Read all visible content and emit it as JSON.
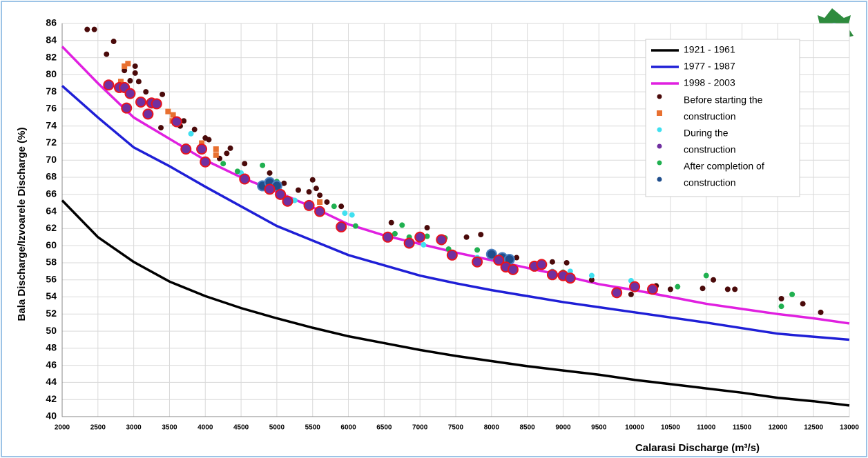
{
  "chart_data": {
    "type": "scatter",
    "x_label": "Calarasi Discharge (m³/s)",
    "y_label": "Bala Discharge/Izvoarele Discharge (%)",
    "xlim": [
      2000,
      13000
    ],
    "xticks": [
      2000,
      2500,
      3000,
      3500,
      4000,
      4500,
      5000,
      5500,
      6000,
      6500,
      7000,
      7500,
      8000,
      8500,
      9000,
      9500,
      10000,
      10500,
      11000,
      11500,
      12000,
      12500,
      13000
    ],
    "ylim": [
      40,
      86
    ],
    "yticks": [
      40,
      42,
      44,
      46,
      48,
      50,
      52,
      54,
      56,
      58,
      60,
      62,
      64,
      66,
      68,
      70,
      72,
      74,
      76,
      78,
      80,
      82,
      84,
      86
    ],
    "grid": true,
    "legend": "upper right",
    "series": [
      {
        "name": "1921 - 1961",
        "kind": "line",
        "color": "#000000",
        "x": [
          2000,
          2500,
          3000,
          3500,
          4000,
          4500,
          5000,
          5500,
          6000,
          6500,
          7000,
          7500,
          8000,
          8500,
          9000,
          9500,
          10000,
          10500,
          11000,
          11500,
          12000,
          12500,
          13000
        ],
        "values": [
          65.3,
          61,
          58.1,
          55.8,
          54.1,
          52.7,
          51.5,
          50.4,
          49.4,
          48.6,
          47.8,
          47.1,
          46.5,
          45.9,
          45.4,
          44.9,
          44.3,
          43.8,
          43.3,
          42.8,
          42.2,
          41.8,
          41.3
        ]
      },
      {
        "name": "1977 - 1987",
        "kind": "line",
        "color": "#1f1fd6",
        "x": [
          2000,
          2500,
          3000,
          3500,
          4000,
          4500,
          5000,
          5500,
          6000,
          6500,
          7000,
          7500,
          8000,
          8500,
          9000,
          9500,
          10000,
          11000,
          12000,
          13000
        ],
        "values": [
          78.7,
          75,
          71.5,
          69.3,
          66.9,
          64.6,
          62.3,
          60.6,
          58.9,
          57.7,
          56.5,
          55.6,
          54.8,
          54.1,
          53.4,
          52.8,
          52.2,
          51,
          49.7,
          49
        ]
      },
      {
        "name": "1998 - 2003",
        "kind": "line",
        "color": "#e020e0",
        "x": [
          2000,
          2500,
          3000,
          3500,
          4000,
          4500,
          5000,
          5500,
          6000,
          6500,
          7000,
          7500,
          8000,
          8500,
          9000,
          9500,
          10000,
          10500,
          11000,
          11500,
          12000,
          12500,
          13000
        ],
        "values": [
          83.3,
          79,
          75,
          72.5,
          70,
          68,
          66.3,
          64.5,
          62.5,
          61.2,
          60.2,
          59.2,
          58.3,
          57.4,
          56.5,
          55.5,
          54.8,
          54,
          53.2,
          52.6,
          52,
          51.5,
          50.9
        ]
      },
      {
        "name": "Before starting the",
        "kind": "scatter",
        "marker": "dot",
        "color": "#4a0a0a",
        "x": [
          2350,
          2450,
          2620,
          2720,
          2870,
          2950,
          3020,
          3020,
          3070,
          3170,
          3400,
          3380,
          3650,
          3700,
          3850,
          4000,
          4050,
          4200,
          4300,
          4350,
          4550,
          4900,
          5100,
          5300,
          5450,
          5500,
          5550,
          5600,
          5700,
          5900,
          6600,
          7100,
          7650,
          7850,
          8000,
          8350,
          8850,
          9050,
          9400,
          9950,
          10300,
          10500,
          10950,
          11100,
          11300,
          11400,
          12050,
          12350,
          12600
        ],
        "values": [
          85.3,
          85.3,
          82.4,
          83.9,
          80.5,
          79.3,
          81,
          80.2,
          79.2,
          78,
          77.7,
          73.8,
          74,
          74.6,
          73.6,
          72.6,
          72.4,
          70.2,
          70.8,
          71.4,
          69.6,
          68.5,
          67.3,
          66.5,
          66.3,
          67.7,
          66.7,
          65.9,
          65.1,
          64.6,
          62.7,
          62.1,
          61,
          61.3,
          59,
          58.6,
          58.1,
          58,
          56,
          54.3,
          55.3,
          54.9,
          55,
          56,
          54.9,
          54.9,
          53.8,
          53.2,
          52.2
        ]
      },
      {
        "name": "construction",
        "kind": "scatter",
        "marker": "square",
        "color": "#e87030",
        "x": [
          2820,
          2870,
          2920,
          3480,
          3540,
          3550,
          3950,
          4150,
          4150,
          5600
        ],
        "values": [
          79.2,
          81,
          81.3,
          75.7,
          74.6,
          75.3,
          72,
          71.3,
          70.6,
          65.1
        ]
      },
      {
        "name": "During the",
        "kind": "scatter",
        "marker": "dot",
        "color": "#40e0f0",
        "x": [
          3800,
          4500,
          4550,
          5000,
          5250,
          5950,
          6050,
          7050,
          7800,
          8850,
          9100,
          9400,
          9950,
          10000
        ],
        "values": [
          73.1,
          68.5,
          67.5,
          67.2,
          65.3,
          63.8,
          63.6,
          60.1,
          58.6,
          57,
          57,
          56.5,
          55.9,
          55.5
        ]
      },
      {
        "name": "construction",
        "kind": "scatter",
        "marker": "big",
        "color": "#7030a0",
        "x": [
          2650,
          2800,
          2870,
          2900,
          2950,
          3100,
          3200,
          3250,
          3320,
          3600,
          3730,
          3950,
          4000,
          4550,
          4900,
          5050,
          5150,
          5450,
          5600,
          5900,
          6550,
          6850,
          7000,
          7300,
          7450,
          7800,
          8100,
          8200,
          8300,
          8600,
          8700,
          8850,
          9000,
          9100,
          9750,
          10000,
          10250
        ],
        "values": [
          78.8,
          78.5,
          78.5,
          76.1,
          77.8,
          76.8,
          75.4,
          76.7,
          76.6,
          74.5,
          71.3,
          71.3,
          69.8,
          67.8,
          66.6,
          66,
          65.2,
          64.7,
          64,
          62.2,
          61,
          60.3,
          61,
          60.7,
          58.9,
          58.1,
          58.3,
          57.5,
          57.2,
          57.6,
          57.8,
          56.6,
          56.5,
          56.2,
          54.5,
          55.2,
          54.9
        ]
      },
      {
        "name": "After completion of",
        "kind": "scatter",
        "marker": "dot",
        "color": "#20b050",
        "x": [
          3700,
          4250,
          4450,
          4800,
          5000,
          5800,
          6100,
          6650,
          6750,
          6850,
          7100,
          7350,
          7400,
          7800,
          8300,
          8650,
          9000,
          10600,
          11000,
          12050,
          12200
        ],
        "values": [
          71.4,
          69.6,
          68.7,
          69.4,
          67.5,
          64.6,
          62.3,
          61.4,
          62.4,
          61,
          61.1,
          60.9,
          59.6,
          59.5,
          57.3,
          57.6,
          56.9,
          55.2,
          56.5,
          52.9,
          54.3
        ]
      },
      {
        "name": "construction",
        "kind": "scatter",
        "marker": "navy",
        "color": "#1f4e8c",
        "x": [
          4800,
          4900,
          5000,
          8000,
          8150,
          8250
        ],
        "values": [
          67,
          67.4,
          67,
          59,
          58.6,
          58.4
        ]
      }
    ]
  }
}
